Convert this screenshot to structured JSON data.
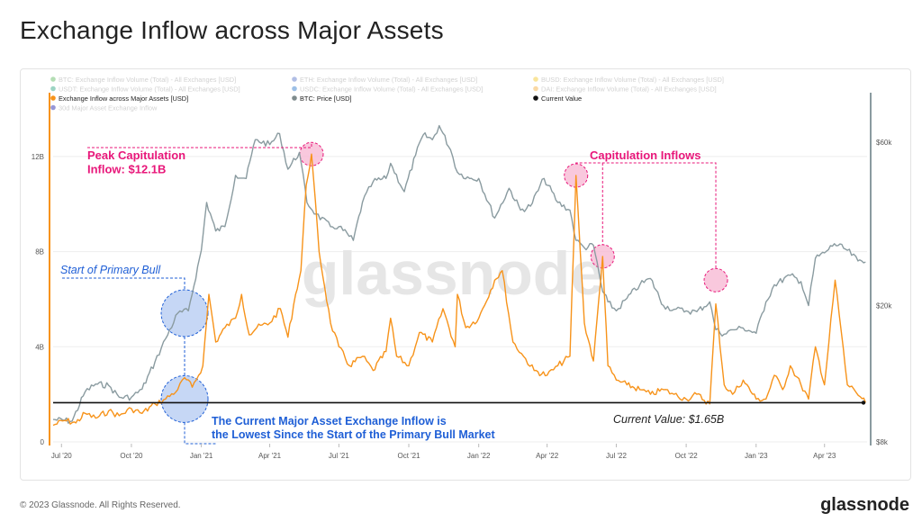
{
  "page": {
    "title": "Exchange Inflow across Major Assets",
    "copyright": "© 2023 Glassnode. All Rights Reserved.",
    "brand": "glassnode",
    "watermark": "glassnode"
  },
  "legend": [
    {
      "label": "BTC: Exchange Inflow Volume (Total) - All Exchanges [USD]",
      "color": "#5ab75a",
      "faded": true
    },
    {
      "label": "ETH: Exchange Inflow Volume (Total) - All Exchanges [USD]",
      "color": "#5470c6",
      "faded": true
    },
    {
      "label": "BUSD: Exchange Inflow Volume (Total) - All Exchanges [USD]",
      "color": "#f3c623",
      "faded": true
    },
    {
      "label": "USDT: Exchange Inflow Volume (Total) - All Exchanges [USD]",
      "color": "#26a17b",
      "faded": true
    },
    {
      "label": "USDC: Exchange Inflow Volume (Total) - All Exchanges [USD]",
      "color": "#2775ca",
      "faded": true
    },
    {
      "label": "DAI: Exchange Inflow Volume (Total) - All Exchanges [USD]",
      "color": "#f5ac37",
      "faded": true
    },
    {
      "label": "Exchange Inflow across Major Assets [USD]",
      "color": "#f7931a",
      "faded": false
    },
    {
      "label": "BTC: Price [USD]",
      "color": "#7f8c8d",
      "faded": false
    },
    {
      "label": "Current Value",
      "color": "#111111",
      "faded": false
    },
    {
      "label": "30d Major Asset Exchange Inflow",
      "color": "#1a1aa6",
      "faded": true
    }
  ],
  "annotations": {
    "peak": "Peak Capitulation\nInflow: $12.1B",
    "capitulation": "Capitulation Inflows",
    "bull_start": "Start of Primary Bull",
    "current_value": "Current Value: $1.65B",
    "lowest": "The Current Major Asset Exchange Inflow is\nthe Lowest Since the Start of the Primary Bull Market"
  },
  "colors": {
    "inflow": "#f7931a",
    "price": "#8a9ba0",
    "current": "#111111",
    "pink": "#e8177a",
    "pink_fill": "#f7b5d2",
    "blue": "#1f5fd6",
    "blue_fill": "#b3c9f2",
    "grid": "#eeeeee"
  },
  "chart_data": {
    "type": "line",
    "x_ticks": [
      "Jul '20",
      "Oct '20",
      "Jan '21",
      "Apr '21",
      "Jul '21",
      "Oct '21",
      "Jan '22",
      "Apr '22",
      "Jul '22",
      "Oct '22",
      "Jan '23",
      "Apr '23"
    ],
    "y_left_ticks": [
      "0",
      "4B",
      "8B",
      "12B"
    ],
    "y_right_ticks": [
      "$8k",
      "$20k",
      "$60k"
    ],
    "y_left_range": [
      0,
      14
    ],
    "y_right_range": [
      8000,
      75000
    ],
    "y_right_scale": "log",
    "current_value": 1.65,
    "series": [
      {
        "name": "Exchange Inflow across Major Assets [USD]",
        "axis": "left",
        "x": [
          "2020-06-20",
          "2020-07-05",
          "2020-07-20",
          "2020-08-01",
          "2020-08-15",
          "2020-09-01",
          "2020-09-15",
          "2020-10-01",
          "2020-10-15",
          "2020-11-01",
          "2020-11-15",
          "2020-12-01",
          "2020-12-10",
          "2020-12-20",
          "2021-01-03",
          "2021-01-11",
          "2021-01-20",
          "2021-02-01",
          "2021-02-15",
          "2021-02-23",
          "2021-03-05",
          "2021-03-15",
          "2021-04-01",
          "2021-04-15",
          "2021-04-25",
          "2021-05-05",
          "2021-05-12",
          "2021-05-19",
          "2021-05-26",
          "2021-06-05",
          "2021-06-20",
          "2021-07-01",
          "2021-07-15",
          "2021-08-01",
          "2021-08-15",
          "2021-09-01",
          "2021-09-07",
          "2021-09-15",
          "2021-10-01",
          "2021-10-15",
          "2021-11-01",
          "2021-11-15",
          "2021-12-01",
          "2021-12-04",
          "2021-12-15",
          "2022-01-01",
          "2022-01-22",
          "2022-02-01",
          "2022-02-15",
          "2022-03-01",
          "2022-03-15",
          "2022-04-01",
          "2022-04-15",
          "2022-05-01",
          "2022-05-09",
          "2022-05-20",
          "2022-06-01",
          "2022-06-13",
          "2022-06-20",
          "2022-07-01",
          "2022-07-15",
          "2022-08-01",
          "2022-08-15",
          "2022-09-01",
          "2022-09-15",
          "2022-10-01",
          "2022-10-15",
          "2022-11-01",
          "2022-11-09",
          "2022-11-20",
          "2022-12-01",
          "2022-12-15",
          "2023-01-01",
          "2023-01-14",
          "2023-01-25",
          "2023-02-05",
          "2023-02-15",
          "2023-03-01",
          "2023-03-11",
          "2023-03-20",
          "2023-04-01",
          "2023-04-15",
          "2023-05-01",
          "2023-05-10",
          "2023-05-18",
          "2023-05-25"
        ],
        "values": [
          0.7,
          0.9,
          0.8,
          1.2,
          1.0,
          1.3,
          1.1,
          1.4,
          1.2,
          1.6,
          1.8,
          2.2,
          2.7,
          2.3,
          3.2,
          6.2,
          4.2,
          4.8,
          5.2,
          6.2,
          4.5,
          4.8,
          5.0,
          5.6,
          4.4,
          6.2,
          7.2,
          10.8,
          12.1,
          8.0,
          5.0,
          4.0,
          3.2,
          3.6,
          3.0,
          3.8,
          5.2,
          3.6,
          3.2,
          4.6,
          4.2,
          5.6,
          4.0,
          6.2,
          4.8,
          5.2,
          6.8,
          7.2,
          4.2,
          3.6,
          3.0,
          2.8,
          3.2,
          3.6,
          11.2,
          5.0,
          3.4,
          7.8,
          3.2,
          2.6,
          2.4,
          2.2,
          2.0,
          2.2,
          2.0,
          1.8,
          2.0,
          1.6,
          5.8,
          2.4,
          2.0,
          2.6,
          1.8,
          1.8,
          2.8,
          2.2,
          3.2,
          2.4,
          1.8,
          4.0,
          2.4,
          6.8,
          2.4,
          2.2,
          1.9,
          1.65
        ]
      },
      {
        "name": "BTC: Price [USD]",
        "axis": "right",
        "x": [
          "2020-06-20",
          "2020-07-15",
          "2020-08-01",
          "2020-08-15",
          "2020-09-01",
          "2020-09-15",
          "2020-10-01",
          "2020-10-15",
          "2020-11-01",
          "2020-11-15",
          "2020-12-01",
          "2020-12-15",
          "2021-01-01",
          "2021-01-08",
          "2021-01-20",
          "2021-02-01",
          "2021-02-15",
          "2021-03-01",
          "2021-03-13",
          "2021-04-01",
          "2021-04-14",
          "2021-04-25",
          "2021-05-10",
          "2021-05-20",
          "2021-06-01",
          "2021-06-20",
          "2021-07-01",
          "2021-07-20",
          "2021-08-01",
          "2021-08-15",
          "2021-09-01",
          "2021-09-07",
          "2021-09-25",
          "2021-10-10",
          "2021-10-20",
          "2021-11-01",
          "2021-11-10",
          "2021-11-25",
          "2021-12-04",
          "2021-12-20",
          "2022-01-01",
          "2022-01-22",
          "2022-02-10",
          "2022-02-25",
          "2022-03-10",
          "2022-03-28",
          "2022-04-15",
          "2022-05-01",
          "2022-05-09",
          "2022-05-20",
          "2022-06-01",
          "2022-06-13",
          "2022-06-20",
          "2022-07-01",
          "2022-07-15",
          "2022-08-01",
          "2022-08-15",
          "2022-09-01",
          "2022-09-15",
          "2022-10-01",
          "2022-10-15",
          "2022-11-01",
          "2022-11-09",
          "2022-11-20",
          "2022-12-01",
          "2022-12-15",
          "2023-01-01",
          "2023-01-14",
          "2023-01-25",
          "2023-02-15",
          "2023-03-01",
          "2023-03-11",
          "2023-03-20",
          "2023-04-01",
          "2023-04-14",
          "2023-05-01",
          "2023-05-15",
          "2023-05-25"
        ],
        "values": [
          9300,
          9200,
          11200,
          11800,
          11700,
          10800,
          10800,
          11400,
          13700,
          16000,
          19000,
          19300,
          29000,
          40000,
          33000,
          34000,
          48000,
          47000,
          61000,
          59000,
          63500,
          50000,
          56000,
          40000,
          37000,
          34000,
          34000,
          31000,
          40000,
          46000,
          47000,
          52000,
          43000,
          55000,
          63000,
          61000,
          67000,
          57000,
          49000,
          47000,
          47000,
          36000,
          44000,
          38000,
          39000,
          47000,
          40000,
          38000,
          31000,
          29500,
          30000,
          22000,
          20500,
          19300,
          21000,
          23000,
          24000,
          20000,
          19500,
          19300,
          19200,
          20500,
          17000,
          16500,
          17000,
          17200,
          16600,
          20500,
          23000,
          24500,
          23500,
          20000,
          27500,
          28500,
          30300,
          29000,
          27000,
          26800
        ]
      }
    ]
  }
}
